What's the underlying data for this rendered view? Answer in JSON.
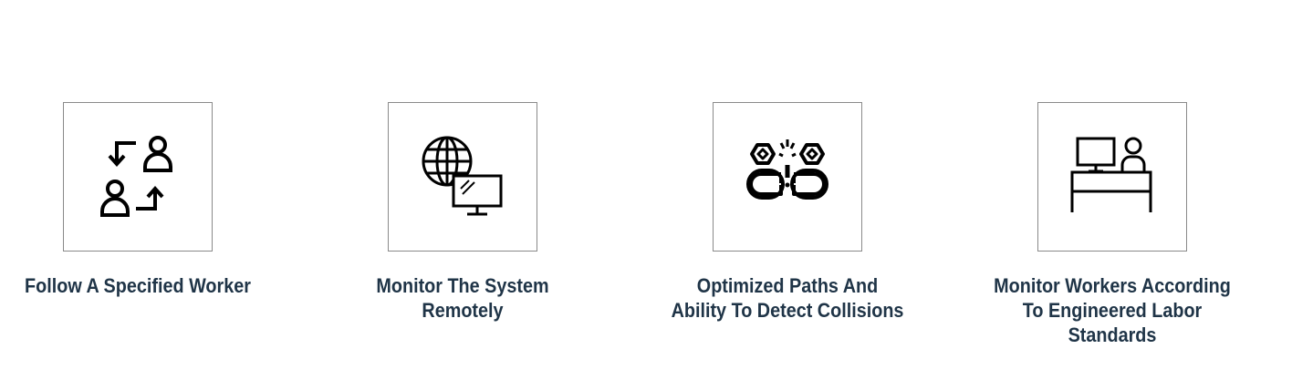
{
  "features": [
    {
      "icon": "swap-workers-icon",
      "title_lines": [
        "Follow A Specified Worker"
      ]
    },
    {
      "icon": "globe-monitor-icon",
      "title_lines": [
        "Monitor The System",
        "Remotely"
      ]
    },
    {
      "icon": "collision-warning-icon",
      "title_lines": [
        "Optimized Paths And",
        "Ability To Detect Collisions"
      ]
    },
    {
      "icon": "worker-desk-icon",
      "title_lines": [
        "Monitor Workers According",
        "To Engineered Labor",
        "Standards"
      ]
    }
  ],
  "colors": {
    "heading": "#1f3447",
    "box_border": "#8a8a8a",
    "icon_stroke": "#000000"
  }
}
